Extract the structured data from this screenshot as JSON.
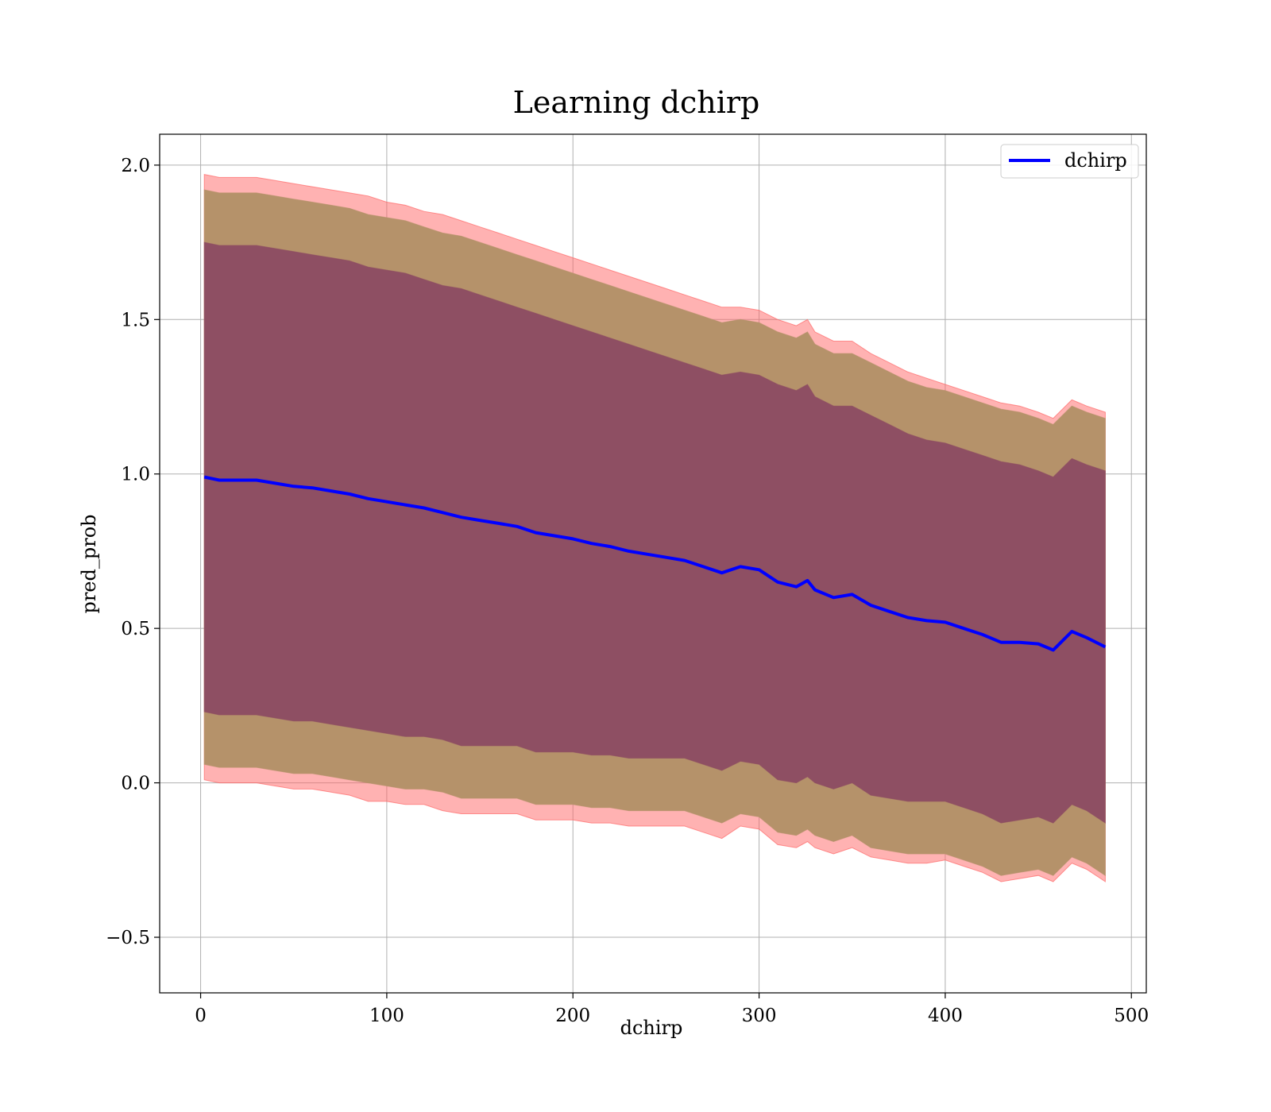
{
  "chart_data": {
    "type": "line",
    "title": "Learning dchirp",
    "xlabel": "dchirp",
    "ylabel": "pred_prob",
    "xlim": [
      -22,
      508
    ],
    "ylim": [
      -0.68,
      2.1
    ],
    "xticks": [
      0,
      100,
      200,
      300,
      400,
      500
    ],
    "xtick_labels": [
      "0",
      "100",
      "200",
      "300",
      "400",
      "500"
    ],
    "yticks": [
      -0.5,
      0.0,
      0.5,
      1.0,
      1.5,
      2.0
    ],
    "ytick_labels": [
      "−0.5",
      "0.0",
      "0.5",
      "1.0",
      "1.5",
      "2.0"
    ],
    "grid": true,
    "legend_position": "top-right",
    "legend": [
      "dchirp"
    ],
    "colors": {
      "line": "#0000ff",
      "band_outer": "#ff6666",
      "band_middle": "#b5926a",
      "band_inner": "#8e4f63"
    },
    "series": [
      {
        "name": "dchirp",
        "x": [
          2,
          10,
          20,
          30,
          40,
          50,
          60,
          70,
          80,
          90,
          100,
          110,
          120,
          130,
          140,
          150,
          160,
          170,
          180,
          190,
          200,
          210,
          220,
          230,
          240,
          250,
          260,
          270,
          280,
          290,
          300,
          310,
          320,
          326,
          330,
          340,
          350,
          360,
          370,
          380,
          390,
          400,
          410,
          420,
          430,
          440,
          450,
          458,
          468,
          476,
          486
        ],
        "y": [
          0.99,
          0.98,
          0.98,
          0.98,
          0.97,
          0.96,
          0.955,
          0.945,
          0.935,
          0.92,
          0.91,
          0.9,
          0.89,
          0.875,
          0.86,
          0.85,
          0.84,
          0.83,
          0.81,
          0.8,
          0.79,
          0.775,
          0.765,
          0.75,
          0.74,
          0.73,
          0.72,
          0.7,
          0.68,
          0.7,
          0.69,
          0.65,
          0.635,
          0.655,
          0.625,
          0.6,
          0.61,
          0.575,
          0.555,
          0.535,
          0.525,
          0.52,
          0.5,
          0.48,
          0.455,
          0.455,
          0.45,
          0.43,
          0.49,
          0.47,
          0.44
        ]
      }
    ],
    "bands": [
      {
        "level": "outer",
        "upper": [
          1.97,
          1.96,
          1.96,
          1.96,
          1.95,
          1.94,
          1.93,
          1.92,
          1.91,
          1.9,
          1.88,
          1.87,
          1.85,
          1.84,
          1.82,
          1.8,
          1.78,
          1.76,
          1.74,
          1.72,
          1.7,
          1.68,
          1.66,
          1.64,
          1.62,
          1.6,
          1.58,
          1.56,
          1.54,
          1.54,
          1.53,
          1.5,
          1.48,
          1.5,
          1.46,
          1.43,
          1.43,
          1.39,
          1.36,
          1.33,
          1.31,
          1.29,
          1.27,
          1.25,
          1.23,
          1.22,
          1.2,
          1.18,
          1.24,
          1.22,
          1.2
        ]
      },
      {
        "level": "middle",
        "upper": [
          1.92,
          1.91,
          1.91,
          1.91,
          1.9,
          1.89,
          1.88,
          1.87,
          1.86,
          1.84,
          1.83,
          1.82,
          1.8,
          1.78,
          1.77,
          1.75,
          1.73,
          1.71,
          1.69,
          1.67,
          1.65,
          1.63,
          1.61,
          1.59,
          1.57,
          1.55,
          1.53,
          1.51,
          1.49,
          1.5,
          1.49,
          1.46,
          1.44,
          1.46,
          1.42,
          1.39,
          1.39,
          1.36,
          1.33,
          1.3,
          1.28,
          1.27,
          1.25,
          1.23,
          1.21,
          1.2,
          1.18,
          1.16,
          1.22,
          1.2,
          1.18
        ]
      },
      {
        "level": "inner",
        "upper": [
          1.75,
          1.74,
          1.74,
          1.74,
          1.73,
          1.72,
          1.71,
          1.7,
          1.69,
          1.67,
          1.66,
          1.65,
          1.63,
          1.61,
          1.6,
          1.58,
          1.56,
          1.54,
          1.52,
          1.5,
          1.48,
          1.46,
          1.44,
          1.42,
          1.4,
          1.38,
          1.36,
          1.34,
          1.32,
          1.33,
          1.32,
          1.29,
          1.27,
          1.29,
          1.25,
          1.22,
          1.22,
          1.19,
          1.16,
          1.13,
          1.11,
          1.1,
          1.08,
          1.06,
          1.04,
          1.03,
          1.01,
          0.99,
          1.05,
          1.03,
          1.01
        ]
      }
    ]
  }
}
